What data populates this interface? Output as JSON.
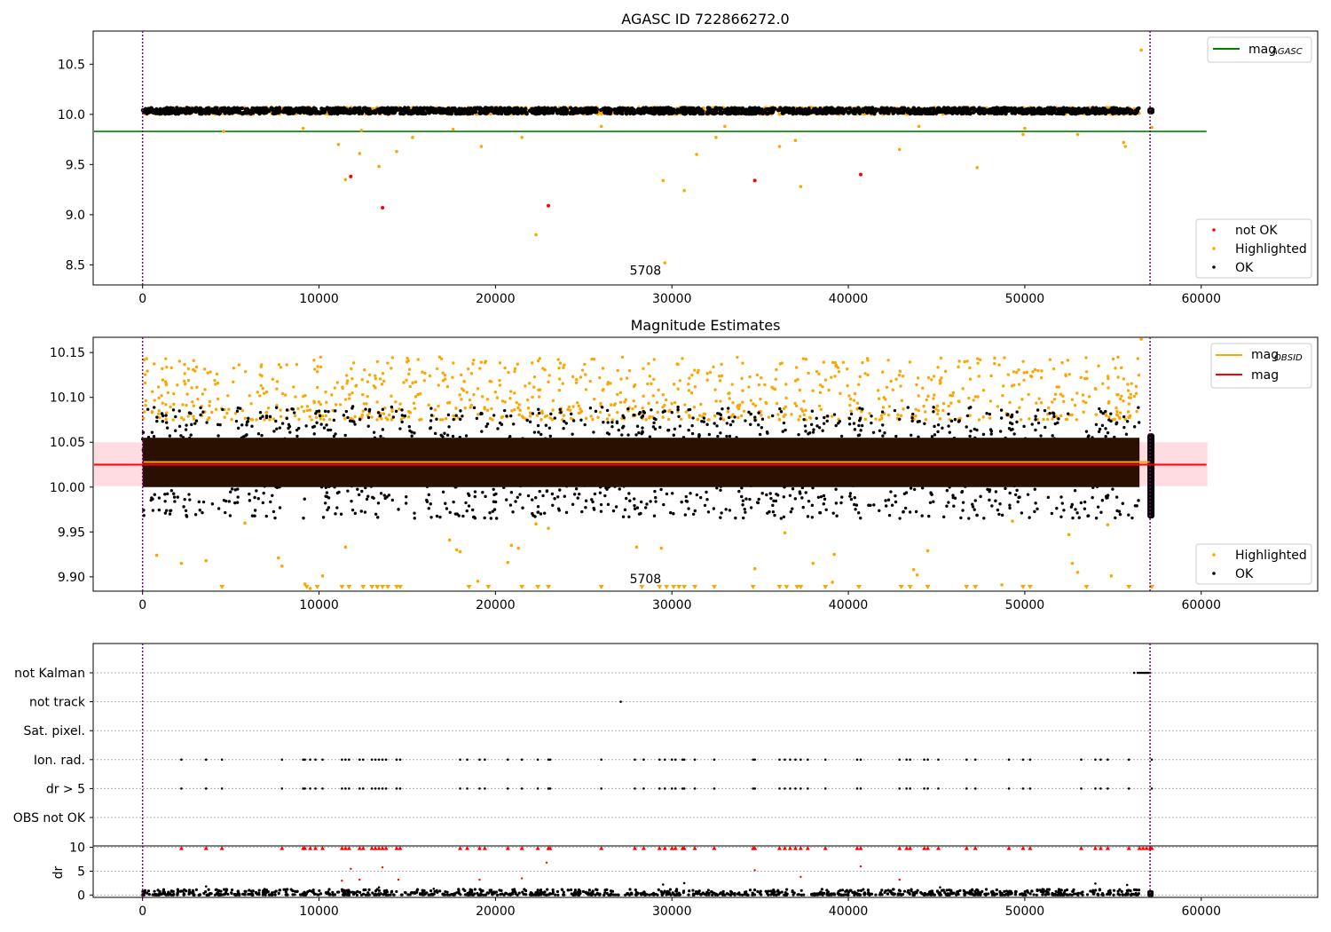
{
  "figure_title": "AGASC ID 722866272.0",
  "chart_data": [
    {
      "type": "scatter",
      "title": "AGASC ID 722866272.0",
      "xlim": [
        -2800,
        66600
      ],
      "ylim": [
        8.3,
        10.83
      ],
      "xticks": [
        0,
        10000,
        20000,
        30000,
        40000,
        50000,
        60000
      ],
      "yticks": [
        8.5,
        9.0,
        9.5,
        10.0,
        10.5
      ],
      "ytick_labels": [
        "8.5",
        "9.0",
        "9.5",
        "10.0",
        "10.5"
      ],
      "vlines": [
        0,
        57100
      ],
      "vline_color": "#800080",
      "hlines": [
        {
          "name": "mag_AGASC",
          "y": 9.83,
          "x_range": [
            -2800,
            60300
          ],
          "color": "#008000"
        }
      ],
      "annotation": "5708",
      "annotation_pos": [
        28500,
        8.4
      ],
      "ok_band": {
        "y": [
          10.0,
          10.07
        ],
        "x": [
          0,
          56500
        ],
        "extra_x": [
          57100,
          57200
        ]
      },
      "series": [
        {
          "name": "not OK",
          "color": "#ff0000",
          "points": [
            [
              11800,
              9.38
            ],
            [
              13600,
              9.07
            ],
            [
              23000,
              9.09
            ],
            [
              34700,
              9.34
            ],
            [
              40700,
              9.4
            ]
          ]
        },
        {
          "name": "Highlighted",
          "color": "#ffa500",
          "points": [
            [
              11500,
              9.35
            ],
            [
              11100,
              9.7
            ],
            [
              12300,
              9.61
            ],
            [
              12400,
              9.84
            ],
            [
              13400,
              9.48
            ],
            [
              14400,
              9.63
            ],
            [
              15300,
              9.77
            ],
            [
              19200,
              9.68
            ],
            [
              22300,
              8.8
            ],
            [
              21500,
              9.77
            ],
            [
              29500,
              9.34
            ],
            [
              29600,
              8.52
            ],
            [
              30700,
              9.24
            ],
            [
              31400,
              9.6
            ],
            [
              32500,
              9.77
            ],
            [
              36100,
              9.68
            ],
            [
              37300,
              9.28
            ],
            [
              37000,
              9.74
            ],
            [
              42900,
              9.65
            ],
            [
              47300,
              9.47
            ],
            [
              49900,
              9.8
            ],
            [
              53000,
              9.8
            ],
            [
              55600,
              9.72
            ],
            [
              55700,
              9.68
            ],
            [
              56600,
              10.64
            ],
            [
              4600,
              9.83
            ],
            [
              9100,
              9.86
            ],
            [
              17600,
              9.85
            ],
            [
              26000,
              9.88
            ],
            [
              33000,
              9.88
            ],
            [
              44000,
              9.88
            ],
            [
              50000,
              9.86
            ],
            [
              57200,
              9.87
            ]
          ]
        },
        {
          "name": "OK",
          "color": "#000000",
          "points": []
        }
      ],
      "legends": [
        {
          "entries": [
            "mag_AGASC"
          ],
          "loc": "upper right"
        },
        {
          "entries": [
            "not OK",
            "Highlighted",
            "OK"
          ],
          "loc": "lower right"
        }
      ]
    },
    {
      "type": "scatter",
      "title": "Magnitude Estimates",
      "xlim": [
        -2800,
        66600
      ],
      "ylim": [
        9.884,
        10.167
      ],
      "xticks": [
        0,
        10000,
        20000,
        30000,
        40000,
        50000,
        60000
      ],
      "yticks": [
        9.9,
        9.95,
        10.0,
        10.05,
        10.1,
        10.15
      ],
      "ytick_labels": [
        "9.90",
        "9.95",
        "10.00",
        "10.05",
        "10.10",
        "10.15"
      ],
      "vlines": [
        0,
        57100
      ],
      "vline_color": "#800080",
      "hlines": [
        {
          "name": "mag_OBSID",
          "y": 10.028,
          "x_range": [
            0,
            57100
          ],
          "color": "#ffa500"
        },
        {
          "name": "mag",
          "y": 10.025,
          "x_range": [
            -2800,
            60300
          ],
          "color": "#ff0000"
        }
      ],
      "shaded_band": {
        "y": [
          10.001,
          10.05
        ],
        "x": [
          -2800,
          60300
        ],
        "color": "#ffc0cb"
      },
      "dense_band": {
        "y": [
          10.0,
          10.055
        ],
        "x": [
          0,
          56500
        ],
        "color": "#2a1000"
      },
      "annotation": "5708",
      "annotation_pos": [
        28500,
        9.893
      ],
      "series": [
        {
          "name": "Highlighted",
          "color": "#ffa500",
          "points": [
            [
              800,
              9.924
            ],
            [
              2200,
              9.915
            ],
            [
              3600,
              9.918
            ],
            [
              5800,
              9.96
            ],
            [
              7700,
              9.921
            ],
            [
              7900,
              9.912
            ],
            [
              9200,
              9.892
            ],
            [
              9500,
              9.887
            ],
            [
              10200,
              9.901
            ],
            [
              11500,
              9.933
            ],
            [
              13300,
              9.889
            ],
            [
              17400,
              9.941
            ],
            [
              17800,
              9.93
            ],
            [
              18000,
              9.928
            ],
            [
              19000,
              9.895
            ],
            [
              20700,
              9.916
            ],
            [
              20900,
              9.935
            ],
            [
              21300,
              9.932
            ],
            [
              22300,
              9.959
            ],
            [
              23000,
              9.954
            ],
            [
              28000,
              9.933
            ],
            [
              29400,
              9.932
            ],
            [
              34700,
              9.909
            ],
            [
              36400,
              9.949
            ],
            [
              38000,
              9.915
            ],
            [
              39200,
              9.925
            ],
            [
              39100,
              9.894
            ],
            [
              43700,
              9.908
            ],
            [
              43900,
              9.902
            ],
            [
              44500,
              9.929
            ],
            [
              48700,
              9.891
            ],
            [
              49300,
              9.962
            ],
            [
              52500,
              9.947
            ],
            [
              52700,
              9.915
            ],
            [
              53000,
              9.905
            ],
            [
              54700,
              9.958
            ],
            [
              54900,
              9.901
            ],
            [
              56600,
              10.165
            ]
          ],
          "triangles_at_bottom_x": [
            4500,
            9300,
            9900,
            11300,
            11700,
            12500,
            13000,
            13300,
            13600,
            13900,
            14400,
            14600,
            18500,
            19600,
            21500,
            22400,
            23000,
            26000,
            28300,
            29300,
            29700,
            30100,
            30400,
            30700,
            31300,
            32400,
            34600,
            36100,
            36500,
            37100,
            37300,
            38700,
            40600,
            43000,
            43500,
            44500,
            46700,
            47200,
            49900,
            50300,
            53500,
            55900,
            57200
          ]
        },
        {
          "name": "OK",
          "color": "#000000",
          "points": []
        }
      ],
      "legends": [
        {
          "entries": [
            "mag_OBSID",
            "mag"
          ],
          "loc": "upper right"
        },
        {
          "entries": [
            "Highlighted",
            "OK"
          ],
          "loc": "lower right"
        }
      ]
    },
    {
      "type": "scatter",
      "title": "",
      "xlim": [
        -2800,
        66600
      ],
      "categories": [
        "not Kalman",
        "not track",
        "Sat. pixel.",
        "Ion. rad.",
        "dr > 5",
        "OBS not OK"
      ],
      "xticks": [
        0,
        10000,
        20000,
        30000,
        40000,
        50000,
        60000
      ],
      "vlines": [
        0,
        57100
      ],
      "vline_color": "#800080",
      "flags": {
        "not Kalman": [
          56200,
          56400,
          56500,
          56600,
          56700,
          56800,
          56900,
          57000,
          57100
        ],
        "not track": [
          27100
        ],
        "Sat. pixel.": [],
        "Ion. rad.": [
          2200,
          3600,
          4500,
          7900,
          9100,
          9200,
          9500,
          9800,
          10200,
          11300,
          11500,
          11700,
          12300,
          12500,
          13000,
          13200,
          13400,
          13600,
          13800,
          14400,
          14600,
          18000,
          18400,
          19100,
          19400,
          20700,
          21500,
          22400,
          23000,
          23100,
          26000,
          27900,
          28400,
          29300,
          29600,
          30000,
          30200,
          30600,
          30700,
          31300,
          32400,
          34600,
          34700,
          36100,
          36400,
          36700,
          37000,
          37300,
          37700,
          38700,
          40500,
          40700,
          42900,
          43300,
          43500,
          44300,
          44500,
          45100,
          46700,
          47200,
          49100,
          49900,
          50300,
          53200,
          54000,
          54300,
          54700,
          55900,
          57200
        ],
        "dr > 5": [
          2200,
          3600,
          4500,
          7900,
          9100,
          9200,
          9500,
          9800,
          10200,
          11300,
          11500,
          11700,
          12300,
          12500,
          13000,
          13200,
          13400,
          13600,
          13800,
          14400,
          14600,
          18000,
          18400,
          19100,
          19400,
          20700,
          21500,
          22400,
          23000,
          23100,
          26000,
          27900,
          28400,
          29300,
          29600,
          30000,
          30200,
          30600,
          30700,
          31300,
          32400,
          34600,
          34700,
          36100,
          36400,
          36700,
          37000,
          37300,
          37700,
          38700,
          40500,
          40700,
          42900,
          43300,
          43500,
          44300,
          44500,
          45100,
          46700,
          47200,
          49100,
          49900,
          50300,
          53200,
          54000,
          54300,
          54700,
          55900,
          57200
        ],
        "OBS not OK": []
      }
    },
    {
      "type": "scatter",
      "title": "",
      "ylabel": "dr",
      "xlim": [
        -2800,
        66600
      ],
      "ylim": [
        -0.5,
        10.3
      ],
      "yticks": [
        0,
        5,
        10
      ],
      "ytick_labels": [
        "0",
        "5",
        "10"
      ],
      "xticks": [
        0,
        10000,
        20000,
        30000,
        40000,
        50000,
        60000
      ],
      "xtick_labels": [
        "0",
        "10000",
        "20000",
        "30000",
        "40000",
        "50000",
        "60000"
      ],
      "vlines": [
        0,
        57100
      ],
      "vline_color": "#800080",
      "red_points": [
        [
          11300,
          3.0
        ],
        [
          11800,
          5.5
        ],
        [
          12300,
          3.2
        ],
        [
          13600,
          5.8
        ],
        [
          14500,
          3.2
        ],
        [
          19100,
          3.2
        ],
        [
          21500,
          3.5
        ],
        [
          22900,
          6.8
        ],
        [
          34700,
          5.2
        ],
        [
          37300,
          3.8
        ],
        [
          40700,
          6.0
        ],
        [
          42900,
          3.2
        ]
      ],
      "capped_points_x": [
        2200,
        3600,
        4500,
        7900,
        9100,
        9200,
        9500,
        9800,
        10200,
        11300,
        11500,
        11700,
        12300,
        12500,
        13000,
        13200,
        13400,
        13600,
        13800,
        14400,
        14600,
        18000,
        18400,
        19100,
        19400,
        20700,
        21500,
        22400,
        23000,
        23100,
        26000,
        27900,
        28400,
        29300,
        29600,
        30000,
        30200,
        30600,
        30700,
        31300,
        32400,
        34600,
        34700,
        36100,
        36400,
        36700,
        37000,
        37300,
        37700,
        38700,
        40500,
        40700,
        42900,
        43300,
        43500,
        44300,
        44500,
        45100,
        46700,
        47200,
        49100,
        49900,
        50300,
        53200,
        54000,
        54300,
        54700,
        55900,
        56500,
        56700,
        56900,
        57100,
        57200
      ],
      "black_base": {
        "y": [
          0.0,
          1.2
        ],
        "x": [
          0,
          56500
        ]
      }
    }
  ]
}
